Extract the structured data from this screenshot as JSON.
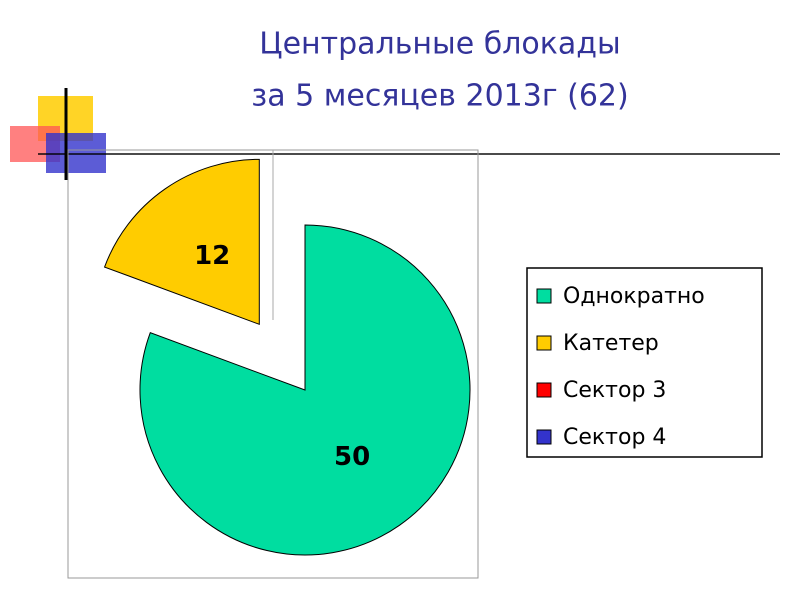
{
  "chart_data": {
    "type": "pie",
    "title": [
      "Центральные блокады",
      "за 5 месяцев 2013г (62)"
    ],
    "categories": [
      "Однократно",
      "Катетер",
      "Сектор 3",
      "Сектор 4"
    ],
    "values": [
      50,
      12,
      0,
      0
    ],
    "colors": [
      "#00DDA0",
      "#FFCC00",
      "#FF0000",
      "#3333CC"
    ],
    "legend": "right"
  }
}
